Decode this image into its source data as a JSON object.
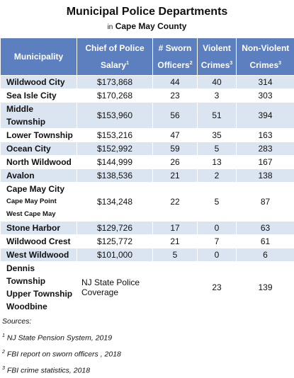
{
  "header": {
    "title": "Municipal Police Departments",
    "subtitle_prefix": "in",
    "subtitle": "Cape May County"
  },
  "table": {
    "columns": [
      {
        "text": "Municipality"
      },
      {
        "text": "Chief of Police Salary",
        "sup": "1"
      },
      {
        "text": "# Sworn Officers",
        "sup": "2"
      },
      {
        "text": "Violent Crimes",
        "sup": "3"
      },
      {
        "text": "Non-Violent Crimes",
        "sup": "3"
      }
    ],
    "rows": [
      {
        "municipality": [
          "Wildwood City"
        ],
        "salary": "$173,868",
        "officers": 44,
        "violent": 40,
        "nonviolent": 314
      },
      {
        "municipality": [
          "Sea Isle City"
        ],
        "salary": "$170,268",
        "officers": 23,
        "violent": 3,
        "nonviolent": 303
      },
      {
        "municipality": [
          "Middle Township"
        ],
        "salary": "$153,960",
        "officers": 56,
        "violent": 51,
        "nonviolent": 394
      },
      {
        "municipality": [
          "Lower Township"
        ],
        "salary": "$153,216",
        "officers": 47,
        "violent": 35,
        "nonviolent": 163
      },
      {
        "municipality": [
          "Ocean City"
        ],
        "salary": "$152,992",
        "officers": 59,
        "violent": 5,
        "nonviolent": 283
      },
      {
        "municipality": [
          "North Wildwood"
        ],
        "salary": "$144,999",
        "officers": 26,
        "violent": 13,
        "nonviolent": 167
      },
      {
        "municipality": [
          "Avalon"
        ],
        "salary": "$138,536",
        "officers": 21,
        "violent": 2,
        "nonviolent": 138
      },
      {
        "municipality": [
          "Cape May City"
        ],
        "also": [
          "Cape May Point",
          "West Cape May"
        ],
        "salary": "$134,248",
        "officers": 22,
        "violent": 5,
        "nonviolent": 87
      },
      {
        "municipality": [
          "Stone Harbor"
        ],
        "salary": "$129,726",
        "officers": 17,
        "violent": 0,
        "nonviolent": 63
      },
      {
        "municipality": [
          "Wildwood Crest"
        ],
        "salary": "$125,772",
        "officers": 21,
        "violent": 7,
        "nonviolent": 61
      },
      {
        "municipality": [
          "West Wildwood"
        ],
        "salary": "$101,000",
        "officers": 5,
        "violent": 0,
        "nonviolent": 6
      },
      {
        "municipality": [
          "Dennis Township",
          "Upper Township",
          "Woodbine"
        ],
        "salary": "NJ State Police Coverage",
        "violent": 23,
        "nonviolent": 139
      }
    ]
  },
  "sources": {
    "title": "Sources:",
    "items": [
      {
        "sup": "1",
        "text": "NJ State Pension System, 2019"
      },
      {
        "sup": "2",
        "text": "FBI report on sworn officers , 2018"
      },
      {
        "sup": "3",
        "text": "FBI crime statistics, 2018"
      }
    ]
  }
}
